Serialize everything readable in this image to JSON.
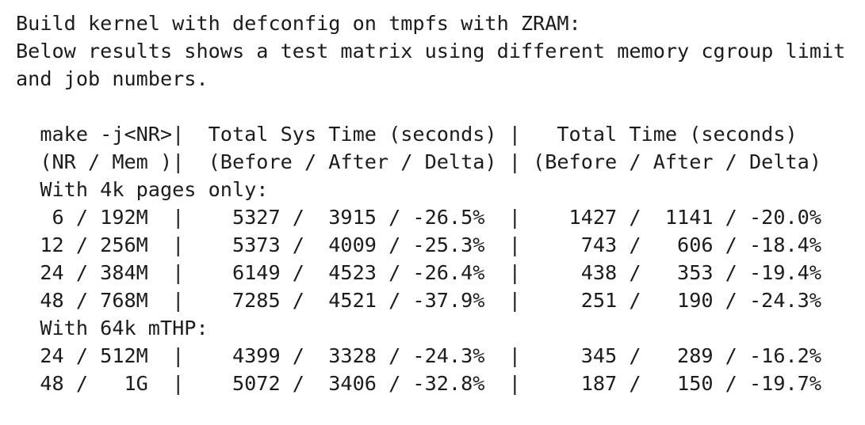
{
  "intro": {
    "lines": [
      "Build kernel with defconfig on tmpfs with ZRAM:",
      "Below results shows a test matrix using different memory cgroup limit",
      "and job numbers."
    ]
  },
  "table": {
    "lines": [
      "  make -j<NR>|  Total Sys Time (seconds) |   Total Time (seconds)",
      "  (NR / Mem )|  (Before / After / Delta) | (Before / After / Delta)",
      "  With 4k pages only:",
      "   6 / 192M  |    5327 /  3915 / -26.5%  |    1427 /  1141 / -20.0%",
      "  12 / 256M  |    5373 /  4009 / -25.3%  |     743 /   606 / -18.4%",
      "  24 / 384M  |    6149 /  4523 / -26.4%  |     438 /   353 / -19.4%",
      "  48 / 768M  |    7285 /  4521 / -37.9%  |     251 /   190 / -24.3%",
      "  With 64k mTHP:",
      "  24 / 512M  |    4399 /  3328 / -24.3%  |     345 /   289 / -16.2%",
      "  48 /   1G  |    5072 /  3406 / -32.8%  |     187 /   150 / -19.7%"
    ]
  }
}
